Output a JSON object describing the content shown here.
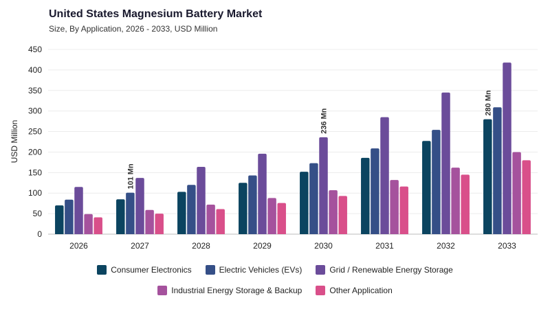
{
  "chart_data": {
    "type": "bar",
    "title": "United States Magnesium Battery Market",
    "subtitle": "Size, By Application, 2026 - 2033, USD Million",
    "ylabel": "USD Million",
    "xlabel": "",
    "ylim": [
      0,
      450
    ],
    "yticks": [
      0,
      50,
      100,
      150,
      200,
      250,
      300,
      350,
      400,
      450
    ],
    "grid": true,
    "legend_position": "bottom",
    "categories": [
      "2026",
      "2027",
      "2028",
      "2029",
      "2030",
      "2031",
      "2032",
      "2033"
    ],
    "series": [
      {
        "name": "Consumer Electronics",
        "color": "#0b4460",
        "values": [
          70,
          85,
          103,
          125,
          152,
          186,
          227,
          280
        ]
      },
      {
        "name": "Electric Vehicles (EVs)",
        "color": "#354f87",
        "values": [
          84,
          101,
          120,
          143,
          173,
          209,
          254,
          309
        ]
      },
      {
        "name": "Grid / Renewable Energy Storage",
        "color": "#6b4c9a",
        "values": [
          115,
          137,
          164,
          196,
          236,
          285,
          345,
          418
        ]
      },
      {
        "name": "Industrial Energy Storage & Backup",
        "color": "#a5529d",
        "values": [
          49,
          59,
          72,
          88,
          107,
          132,
          162,
          200
        ]
      },
      {
        "name": "Other Application",
        "color": "#d94f8a",
        "values": [
          41,
          50,
          61,
          76,
          93,
          116,
          145,
          180
        ]
      }
    ],
    "annotations": [
      {
        "category": "2027",
        "series": "Electric Vehicles (EVs)",
        "text": "101 Mn"
      },
      {
        "category": "2030",
        "series": "Grid / Renewable Energy Storage",
        "text": "236 Mn"
      },
      {
        "category": "2033",
        "series": "Consumer Electronics",
        "text": "280 Mn"
      }
    ]
  }
}
